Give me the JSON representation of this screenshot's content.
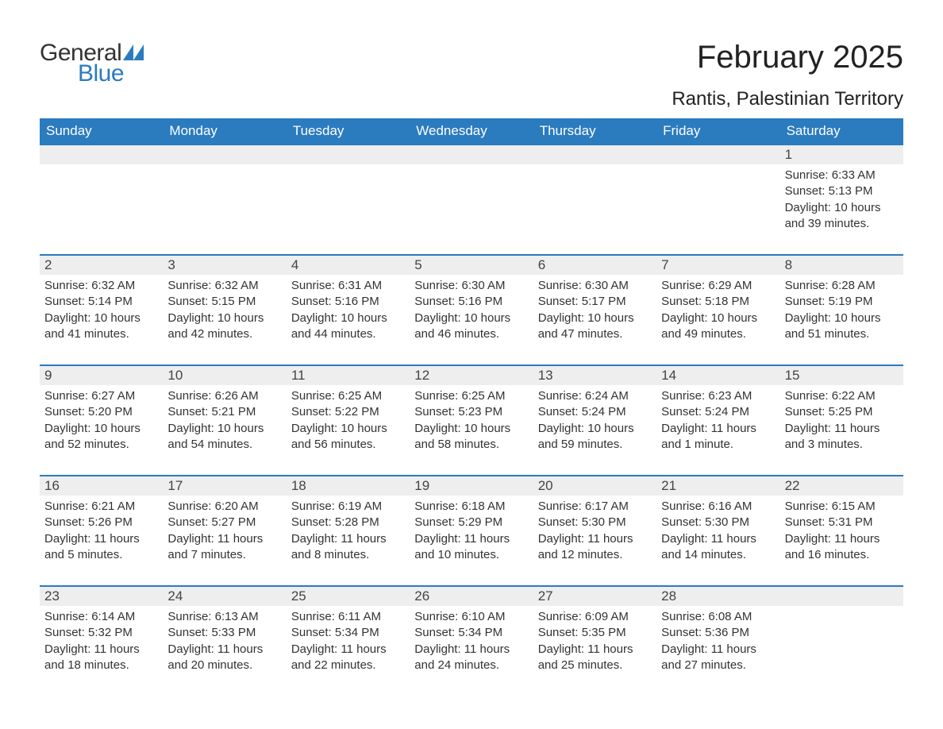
{
  "logo": {
    "text1": "General",
    "text2": "Blue",
    "icon_color": "#2b7bbf"
  },
  "title": "February 2025",
  "location": "Rantis, Palestinian Territory",
  "colors": {
    "header_bg": "#2b7bbf",
    "header_text": "#ffffff",
    "daynum_bg": "#eeeeee",
    "border": "#2b7bbf",
    "body_text": "#333333"
  },
  "days_of_week": [
    "Sunday",
    "Monday",
    "Tuesday",
    "Wednesday",
    "Thursday",
    "Friday",
    "Saturday"
  ],
  "weeks": [
    [
      {
        "n": "",
        "sunrise": "",
        "sunset": "",
        "daylight": ""
      },
      {
        "n": "",
        "sunrise": "",
        "sunset": "",
        "daylight": ""
      },
      {
        "n": "",
        "sunrise": "",
        "sunset": "",
        "daylight": ""
      },
      {
        "n": "",
        "sunrise": "",
        "sunset": "",
        "daylight": ""
      },
      {
        "n": "",
        "sunrise": "",
        "sunset": "",
        "daylight": ""
      },
      {
        "n": "",
        "sunrise": "",
        "sunset": "",
        "daylight": ""
      },
      {
        "n": "1",
        "sunrise": "Sunrise: 6:33 AM",
        "sunset": "Sunset: 5:13 PM",
        "daylight": "Daylight: 10 hours and 39 minutes."
      }
    ],
    [
      {
        "n": "2",
        "sunrise": "Sunrise: 6:32 AM",
        "sunset": "Sunset: 5:14 PM",
        "daylight": "Daylight: 10 hours and 41 minutes."
      },
      {
        "n": "3",
        "sunrise": "Sunrise: 6:32 AM",
        "sunset": "Sunset: 5:15 PM",
        "daylight": "Daylight: 10 hours and 42 minutes."
      },
      {
        "n": "4",
        "sunrise": "Sunrise: 6:31 AM",
        "sunset": "Sunset: 5:16 PM",
        "daylight": "Daylight: 10 hours and 44 minutes."
      },
      {
        "n": "5",
        "sunrise": "Sunrise: 6:30 AM",
        "sunset": "Sunset: 5:16 PM",
        "daylight": "Daylight: 10 hours and 46 minutes."
      },
      {
        "n": "6",
        "sunrise": "Sunrise: 6:30 AM",
        "sunset": "Sunset: 5:17 PM",
        "daylight": "Daylight: 10 hours and 47 minutes."
      },
      {
        "n": "7",
        "sunrise": "Sunrise: 6:29 AM",
        "sunset": "Sunset: 5:18 PM",
        "daylight": "Daylight: 10 hours and 49 minutes."
      },
      {
        "n": "8",
        "sunrise": "Sunrise: 6:28 AM",
        "sunset": "Sunset: 5:19 PM",
        "daylight": "Daylight: 10 hours and 51 minutes."
      }
    ],
    [
      {
        "n": "9",
        "sunrise": "Sunrise: 6:27 AM",
        "sunset": "Sunset: 5:20 PM",
        "daylight": "Daylight: 10 hours and 52 minutes."
      },
      {
        "n": "10",
        "sunrise": "Sunrise: 6:26 AM",
        "sunset": "Sunset: 5:21 PM",
        "daylight": "Daylight: 10 hours and 54 minutes."
      },
      {
        "n": "11",
        "sunrise": "Sunrise: 6:25 AM",
        "sunset": "Sunset: 5:22 PM",
        "daylight": "Daylight: 10 hours and 56 minutes."
      },
      {
        "n": "12",
        "sunrise": "Sunrise: 6:25 AM",
        "sunset": "Sunset: 5:23 PM",
        "daylight": "Daylight: 10 hours and 58 minutes."
      },
      {
        "n": "13",
        "sunrise": "Sunrise: 6:24 AM",
        "sunset": "Sunset: 5:24 PM",
        "daylight": "Daylight: 10 hours and 59 minutes."
      },
      {
        "n": "14",
        "sunrise": "Sunrise: 6:23 AM",
        "sunset": "Sunset: 5:24 PM",
        "daylight": "Daylight: 11 hours and 1 minute."
      },
      {
        "n": "15",
        "sunrise": "Sunrise: 6:22 AM",
        "sunset": "Sunset: 5:25 PM",
        "daylight": "Daylight: 11 hours and 3 minutes."
      }
    ],
    [
      {
        "n": "16",
        "sunrise": "Sunrise: 6:21 AM",
        "sunset": "Sunset: 5:26 PM",
        "daylight": "Daylight: 11 hours and 5 minutes."
      },
      {
        "n": "17",
        "sunrise": "Sunrise: 6:20 AM",
        "sunset": "Sunset: 5:27 PM",
        "daylight": "Daylight: 11 hours and 7 minutes."
      },
      {
        "n": "18",
        "sunrise": "Sunrise: 6:19 AM",
        "sunset": "Sunset: 5:28 PM",
        "daylight": "Daylight: 11 hours and 8 minutes."
      },
      {
        "n": "19",
        "sunrise": "Sunrise: 6:18 AM",
        "sunset": "Sunset: 5:29 PM",
        "daylight": "Daylight: 11 hours and 10 minutes."
      },
      {
        "n": "20",
        "sunrise": "Sunrise: 6:17 AM",
        "sunset": "Sunset: 5:30 PM",
        "daylight": "Daylight: 11 hours and 12 minutes."
      },
      {
        "n": "21",
        "sunrise": "Sunrise: 6:16 AM",
        "sunset": "Sunset: 5:30 PM",
        "daylight": "Daylight: 11 hours and 14 minutes."
      },
      {
        "n": "22",
        "sunrise": "Sunrise: 6:15 AM",
        "sunset": "Sunset: 5:31 PM",
        "daylight": "Daylight: 11 hours and 16 minutes."
      }
    ],
    [
      {
        "n": "23",
        "sunrise": "Sunrise: 6:14 AM",
        "sunset": "Sunset: 5:32 PM",
        "daylight": "Daylight: 11 hours and 18 minutes."
      },
      {
        "n": "24",
        "sunrise": "Sunrise: 6:13 AM",
        "sunset": "Sunset: 5:33 PM",
        "daylight": "Daylight: 11 hours and 20 minutes."
      },
      {
        "n": "25",
        "sunrise": "Sunrise: 6:11 AM",
        "sunset": "Sunset: 5:34 PM",
        "daylight": "Daylight: 11 hours and 22 minutes."
      },
      {
        "n": "26",
        "sunrise": "Sunrise: 6:10 AM",
        "sunset": "Sunset: 5:34 PM",
        "daylight": "Daylight: 11 hours and 24 minutes."
      },
      {
        "n": "27",
        "sunrise": "Sunrise: 6:09 AM",
        "sunset": "Sunset: 5:35 PM",
        "daylight": "Daylight: 11 hours and 25 minutes."
      },
      {
        "n": "28",
        "sunrise": "Sunrise: 6:08 AM",
        "sunset": "Sunset: 5:36 PM",
        "daylight": "Daylight: 11 hours and 27 minutes."
      },
      {
        "n": "",
        "sunrise": "",
        "sunset": "",
        "daylight": ""
      }
    ]
  ]
}
